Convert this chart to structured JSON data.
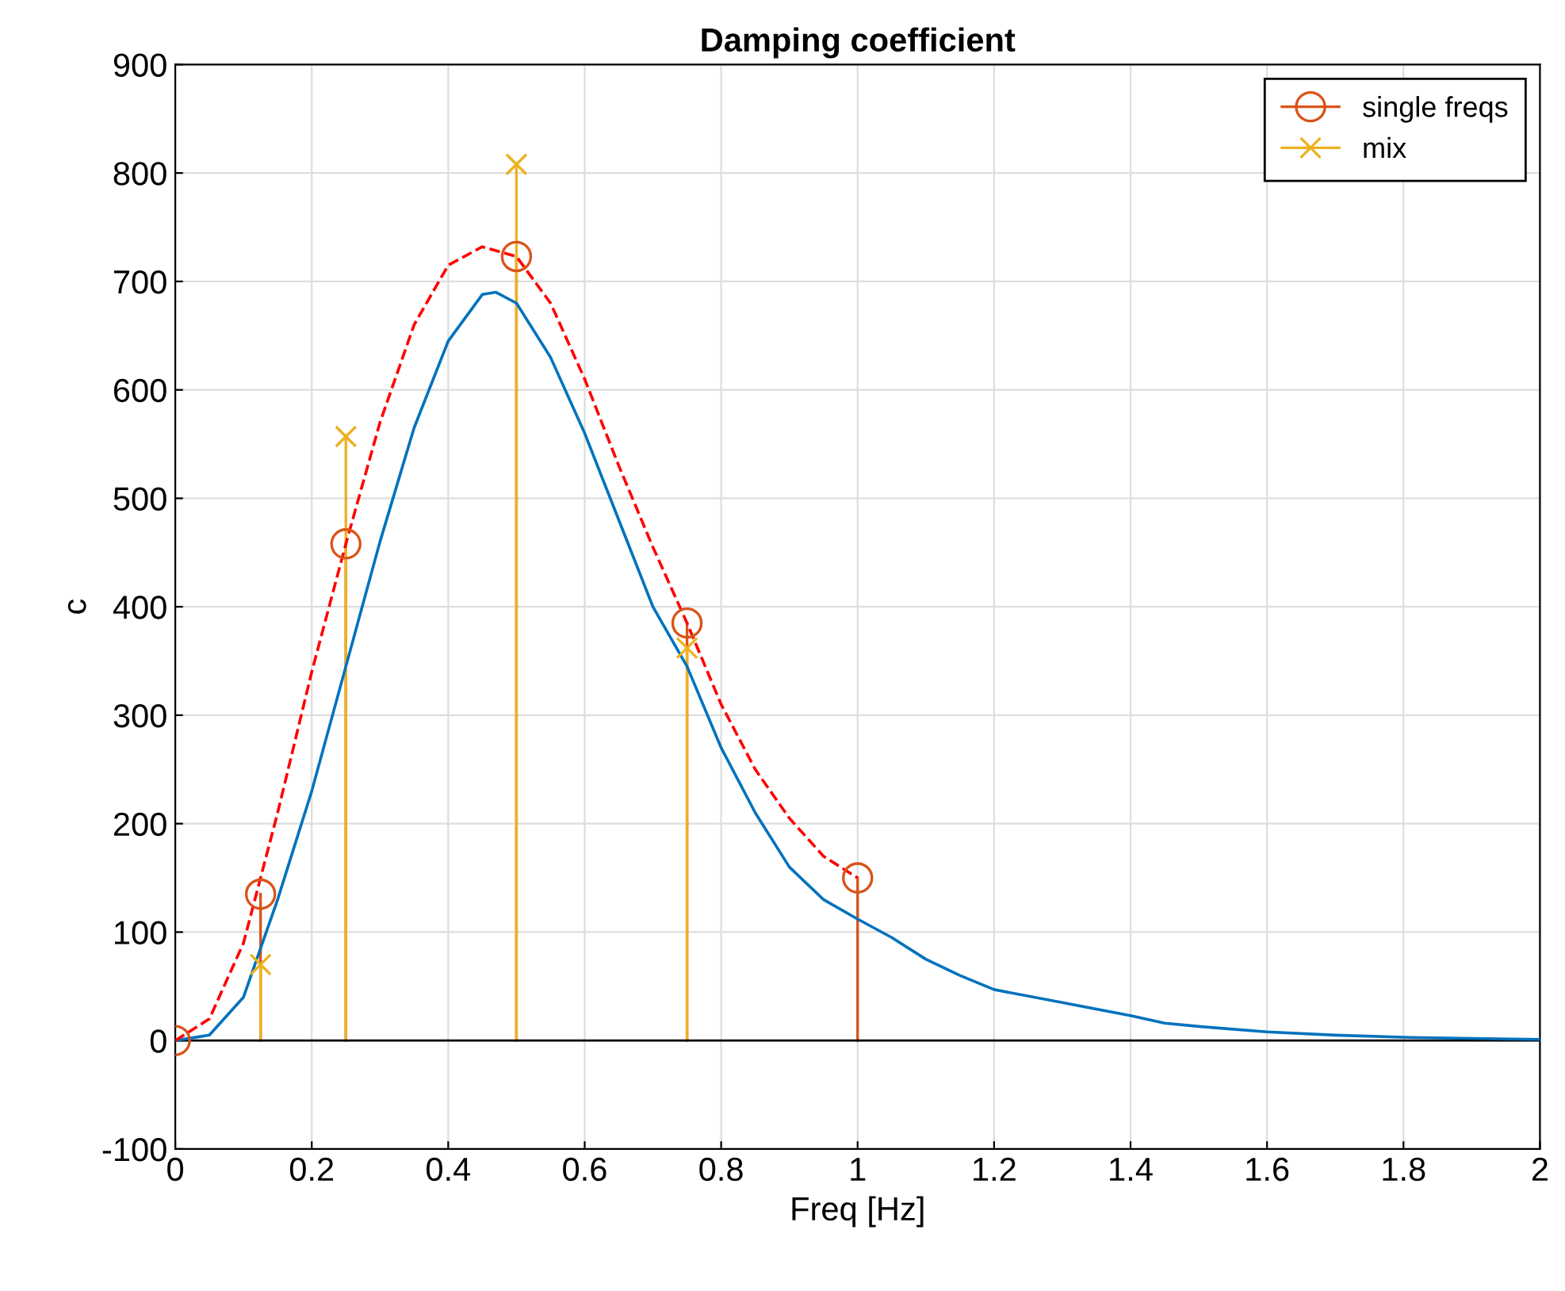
{
  "chart_data": {
    "type": "line",
    "title": "Damping coefficient",
    "xlabel": "Freq [Hz]",
    "ylabel": "c",
    "xlim": [
      0,
      2
    ],
    "xticks": [
      0,
      0.2,
      0.4,
      0.6,
      0.8,
      1,
      1.2,
      1.4,
      1.6,
      1.8,
      2
    ],
    "ylim": [
      -100,
      900
    ],
    "yticks": [
      -100,
      0,
      100,
      200,
      300,
      400,
      500,
      600,
      700,
      800,
      900
    ],
    "grid": true,
    "legend": "top right",
    "ref_lines": [
      {
        "axis": "y",
        "value": 0,
        "color": "#000000"
      }
    ],
    "series": [
      {
        "color": "#0072bd",
        "line_style": "solid",
        "marker": "none",
        "x": [
          0,
          0.05,
          0.1,
          0.15,
          0.2,
          0.25,
          0.3,
          0.35,
          0.4,
          0.45,
          0.47,
          0.5,
          0.55,
          0.6,
          0.65,
          0.7,
          0.75,
          0.8,
          0.85,
          0.9,
          0.95,
          1.0,
          1.05,
          1.1,
          1.15,
          1.2,
          1.3,
          1.4,
          1.45,
          1.5,
          1.6,
          1.7,
          1.8,
          1.9,
          2.0
        ],
        "values": [
          0,
          5,
          40,
          130,
          230,
          345,
          460,
          565,
          645,
          688,
          690,
          680,
          630,
          560,
          480,
          400,
          345,
          270,
          210,
          160,
          130,
          112,
          95,
          75,
          60,
          47,
          35,
          23,
          16,
          13,
          8,
          5,
          3,
          2,
          1
        ]
      },
      {
        "type": "lollipop",
        "name": "single freqs",
        "color": "#d95319",
        "marker": "circle",
        "x": [
          0,
          0.125,
          0.25,
          0.5,
          0.75,
          1
        ],
        "values": [
          0,
          135,
          458,
          723,
          385,
          150
        ]
      },
      {
        "type": "lollipop",
        "name": "mix",
        "color": "#edb120",
        "marker": "cross",
        "x": [
          0.125,
          0.25,
          0.5,
          0.75
        ],
        "values": [
          70,
          557,
          808,
          362
        ]
      },
      {
        "color": "#ff0000",
        "line_style": "dashed",
        "marker": "none",
        "x": [
          0,
          0.05,
          0.1,
          0.15,
          0.2,
          0.25,
          0.3,
          0.35,
          0.4,
          0.45,
          0.5,
          0.55,
          0.6,
          0.65,
          0.7,
          0.75,
          0.8,
          0.85,
          0.9,
          0.95,
          1.0
        ],
        "values": [
          0,
          20,
          90,
          210,
          340,
          458,
          570,
          660,
          715,
          732,
          723,
          680,
          610,
          530,
          455,
          385,
          310,
          250,
          205,
          170,
          150
        ]
      }
    ]
  }
}
